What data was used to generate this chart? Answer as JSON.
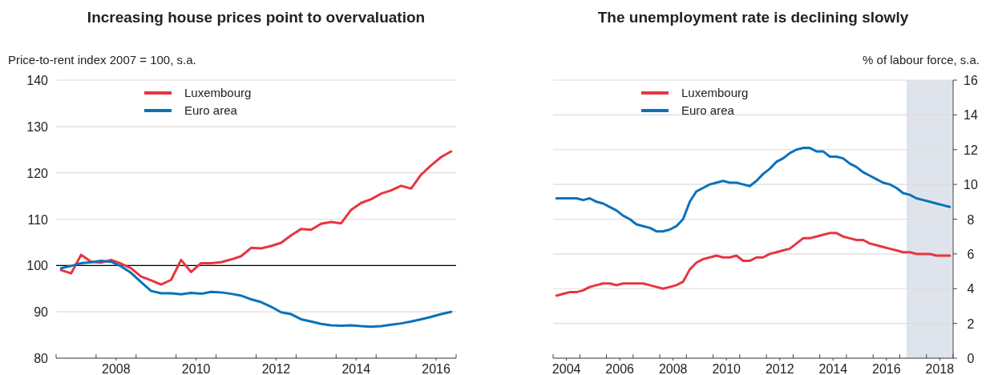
{
  "chart_data": [
    {
      "type": "line",
      "title": "Increasing house prices point to overvaluation",
      "ylabel": "Price-to-rent index 2007 = 100, s.a.",
      "x": [
        2007.125,
        2007.375,
        2007.625,
        2007.875,
        2008.125,
        2008.375,
        2008.625,
        2008.875,
        2009.125,
        2009.375,
        2009.625,
        2009.875,
        2010.125,
        2010.375,
        2010.625,
        2010.875,
        2011.125,
        2011.375,
        2011.625,
        2011.875,
        2012.125,
        2012.375,
        2012.625,
        2012.875,
        2013.125,
        2013.375,
        2013.625,
        2013.875,
        2014.125,
        2014.375,
        2014.625,
        2014.875,
        2015.125,
        2015.375,
        2015.625,
        2015.875,
        2016.125,
        2016.375,
        2016.625,
        2016.875
      ],
      "series": [
        {
          "name": "Luxembourg",
          "color": "#e8353f",
          "values": [
            99.0,
            98.3,
            102.3,
            100.8,
            100.6,
            101.2,
            100.4,
            99.4,
            97.6,
            96.8,
            95.9,
            96.9,
            101.2,
            98.6,
            100.5,
            100.5,
            100.7,
            101.3,
            102.0,
            103.8,
            103.7,
            104.2,
            104.9,
            106.5,
            107.9,
            107.7,
            109.0,
            109.4,
            109.1,
            112.0,
            113.5,
            114.3,
            115.5,
            116.2,
            117.2,
            116.6,
            119.6,
            121.6,
            123.4,
            124.6
          ]
        },
        {
          "name": "Euro area",
          "color": "#0a72ba",
          "values": [
            99.4,
            99.9,
            100.5,
            100.7,
            101.0,
            100.8,
            99.8,
            98.4,
            96.4,
            94.5,
            94.0,
            94.0,
            93.8,
            94.1,
            93.9,
            94.3,
            94.2,
            93.9,
            93.5,
            92.7,
            92.1,
            91.1,
            89.9,
            89.5,
            88.4,
            87.9,
            87.4,
            87.1,
            87.0,
            87.1,
            86.9,
            86.8,
            86.9,
            87.2,
            87.5,
            87.9,
            88.4,
            88.9,
            89.5,
            90.0
          ]
        }
      ],
      "xlim": [
        2007,
        2017
      ],
      "xticks": [
        {
          "value": 2007,
          "label": null
        },
        {
          "value": 2008,
          "label": null
        },
        {
          "value": 2008.5,
          "label": "2008"
        },
        {
          "value": 2009,
          "label": null
        },
        {
          "value": 2010,
          "label": null
        },
        {
          "value": 2010.5,
          "label": "2010"
        },
        {
          "value": 2011,
          "label": null
        },
        {
          "value": 2012,
          "label": null
        },
        {
          "value": 2012.5,
          "label": "2012"
        },
        {
          "value": 2013,
          "label": null
        },
        {
          "value": 2014,
          "label": null
        },
        {
          "value": 2014.5,
          "label": "2014"
        },
        {
          "value": 2015,
          "label": null
        },
        {
          "value": 2016,
          "label": null
        },
        {
          "value": 2016.5,
          "label": "2016"
        },
        {
          "value": 2017,
          "label": null
        }
      ],
      "ylim": [
        80,
        140
      ],
      "yticks": [
        80,
        90,
        100,
        110,
        120,
        130,
        140
      ],
      "grid": "y",
      "legend": "top left",
      "ref_lines": [
        {
          "axis": "y",
          "value": 100,
          "color": "#000000"
        }
      ]
    },
    {
      "type": "line",
      "title": "The unemployment rate is declining slowly",
      "ylabel": "% of labour force, s.a.",
      "x": [
        2004.125,
        2004.375,
        2004.625,
        2004.875,
        2005.125,
        2005.375,
        2005.625,
        2005.875,
        2006.125,
        2006.375,
        2006.625,
        2006.875,
        2007.125,
        2007.375,
        2007.625,
        2007.875,
        2008.125,
        2008.375,
        2008.625,
        2008.875,
        2009.125,
        2009.375,
        2009.625,
        2009.875,
        2010.125,
        2010.375,
        2010.625,
        2010.875,
        2011.125,
        2011.375,
        2011.625,
        2011.875,
        2012.125,
        2012.375,
        2012.625,
        2012.875,
        2013.125,
        2013.375,
        2013.625,
        2013.875,
        2014.125,
        2014.375,
        2014.625,
        2014.875,
        2015.125,
        2015.375,
        2015.625,
        2015.875,
        2016.125,
        2016.375,
        2016.625,
        2016.875,
        2017.125,
        2017.375,
        2017.625,
        2017.875,
        2018.125,
        2018.375,
        2018.625,
        2018.875
      ],
      "series": [
        {
          "name": "Luxembourg",
          "color": "#e8353f",
          "values": [
            3.6,
            3.7,
            3.8,
            3.8,
            3.9,
            4.1,
            4.2,
            4.3,
            4.3,
            4.2,
            4.3,
            4.3,
            4.3,
            4.3,
            4.2,
            4.1,
            4.0,
            4.1,
            4.2,
            4.4,
            5.1,
            5.5,
            5.7,
            5.8,
            5.9,
            5.8,
            5.8,
            5.9,
            5.6,
            5.6,
            5.8,
            5.8,
            6.0,
            6.1,
            6.2,
            6.3,
            6.6,
            6.9,
            6.9,
            7.0,
            7.1,
            7.2,
            7.2,
            7.0,
            6.9,
            6.8,
            6.8,
            6.6,
            6.5,
            6.4,
            6.3,
            6.2,
            6.1,
            6.1,
            6.0,
            6.0,
            6.0,
            5.9,
            5.9,
            5.9
          ]
        },
        {
          "name": "Euro area",
          "color": "#0a72ba",
          "values": [
            9.2,
            9.2,
            9.2,
            9.2,
            9.1,
            9.2,
            9.0,
            8.9,
            8.7,
            8.5,
            8.2,
            8.0,
            7.7,
            7.6,
            7.5,
            7.3,
            7.3,
            7.4,
            7.6,
            8.0,
            9.0,
            9.6,
            9.8,
            10.0,
            10.1,
            10.2,
            10.1,
            10.1,
            10.0,
            9.9,
            10.2,
            10.6,
            10.9,
            11.3,
            11.5,
            11.8,
            12.0,
            12.1,
            12.1,
            11.9,
            11.9,
            11.6,
            11.6,
            11.5,
            11.2,
            11.0,
            10.7,
            10.5,
            10.3,
            10.1,
            10.0,
            9.8,
            9.5,
            9.4,
            9.2,
            9.1,
            9.0,
            8.9,
            8.8,
            8.7
          ]
        }
      ],
      "xlim": [
        2004,
        2019
      ],
      "xticks": [
        {
          "value": 2004,
          "label": null
        },
        {
          "value": 2004.5,
          "label": "2004"
        },
        {
          "value": 2005,
          "label": null
        },
        {
          "value": 2006,
          "label": null
        },
        {
          "value": 2006.5,
          "label": "2006"
        },
        {
          "value": 2007,
          "label": null
        },
        {
          "value": 2008,
          "label": null
        },
        {
          "value": 2008.5,
          "label": "2008"
        },
        {
          "value": 2009,
          "label": null
        },
        {
          "value": 2010,
          "label": null
        },
        {
          "value": 2010.5,
          "label": "2010"
        },
        {
          "value": 2011,
          "label": null
        },
        {
          "value": 2012,
          "label": null
        },
        {
          "value": 2012.5,
          "label": "2012"
        },
        {
          "value": 2013,
          "label": null
        },
        {
          "value": 2014,
          "label": null
        },
        {
          "value": 2014.5,
          "label": "2014"
        },
        {
          "value": 2015,
          "label": null
        },
        {
          "value": 2016,
          "label": null
        },
        {
          "value": 2016.5,
          "label": "2016"
        },
        {
          "value": 2017,
          "label": null
        },
        {
          "value": 2018,
          "label": null
        },
        {
          "value": 2018.5,
          "label": "2018"
        },
        {
          "value": 2019,
          "label": null
        }
      ],
      "ylim": [
        0,
        16
      ],
      "yticks": [
        0,
        2,
        4,
        6,
        8,
        10,
        12,
        14,
        16
      ],
      "grid": "y",
      "legend": "top left",
      "bands": [
        {
          "axis": "x",
          "from": 2017.25,
          "to": 2019,
          "color": "#dfe4ec"
        }
      ]
    }
  ]
}
